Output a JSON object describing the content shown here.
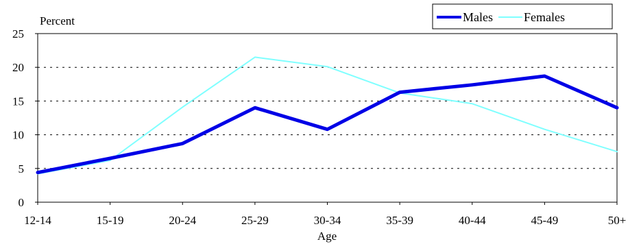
{
  "chart_data": {
    "type": "line",
    "categories": [
      "12-14",
      "15-19",
      "20-24",
      "25-29",
      "30-34",
      "35-39",
      "40-44",
      "45-49",
      "50+"
    ],
    "series": [
      {
        "name": "Males",
        "values": [
          4.4,
          6.5,
          8.7,
          14.0,
          10.8,
          16.3,
          17.4,
          18.7,
          14.0
        ],
        "color": "#0000e6"
      },
      {
        "name": "Females",
        "values": [
          4.2,
          6.2,
          14.1,
          21.5,
          20.1,
          16.2,
          14.6,
          10.8,
          7.5
        ],
        "color": "#7fffff"
      }
    ],
    "ylabel": "Percent",
    "xlabel": "Age",
    "ylim": [
      0,
      25
    ],
    "yticks": [
      "0",
      "5",
      "10",
      "15",
      "20",
      "25"
    ],
    "grid": "horizontal dotted",
    "legend_position": "top-right"
  }
}
